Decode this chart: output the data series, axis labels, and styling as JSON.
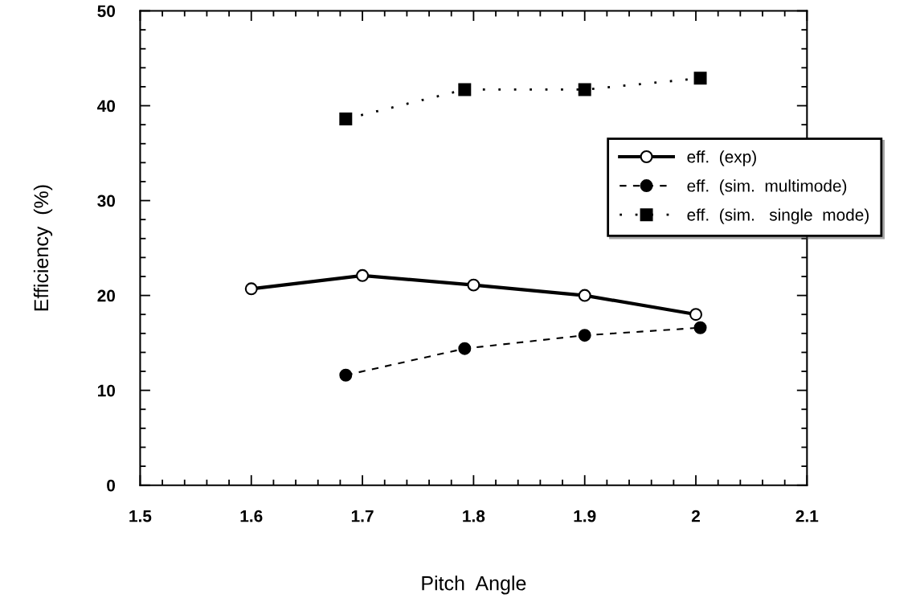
{
  "chart_data": {
    "type": "line",
    "xlabel": "Pitch  Angle",
    "ylabel": "Efficiency  (%)",
    "xlim": [
      1.5,
      2.1
    ],
    "xticks": [
      1.5,
      1.6,
      1.7,
      1.8,
      1.9,
      {
        "value": 2.0,
        "label": "2"
      },
      2.1
    ],
    "ylim": [
      0,
      50
    ],
    "yticks": [
      0,
      10,
      20,
      30,
      40,
      50
    ],
    "grid": false,
    "legend": "right",
    "series": [
      {
        "name": "eff.  (exp)",
        "color": "#000000",
        "line_style": "solid",
        "marker": "circle",
        "x": [
          1.6,
          1.7,
          1.8,
          1.9,
          2.0
        ],
        "values": [
          20.7,
          22.1,
          21.1,
          20.0,
          18.0
        ]
      },
      {
        "name": "eff.  (sim.  multimode)",
        "color": "#000000",
        "line_style": "dashed",
        "marker": "circle",
        "x": [
          1.685,
          1.792,
          1.9,
          2.004
        ],
        "values": [
          11.6,
          14.4,
          15.8,
          16.6
        ]
      },
      {
        "name": "eff.  (sim.   single  mode)",
        "color": "#000000",
        "line_style": "dotted",
        "marker": "square",
        "x": [
          1.685,
          1.792,
          1.9,
          2.004
        ],
        "values": [
          38.6,
          41.7,
          41.7,
          42.9
        ]
      }
    ]
  }
}
